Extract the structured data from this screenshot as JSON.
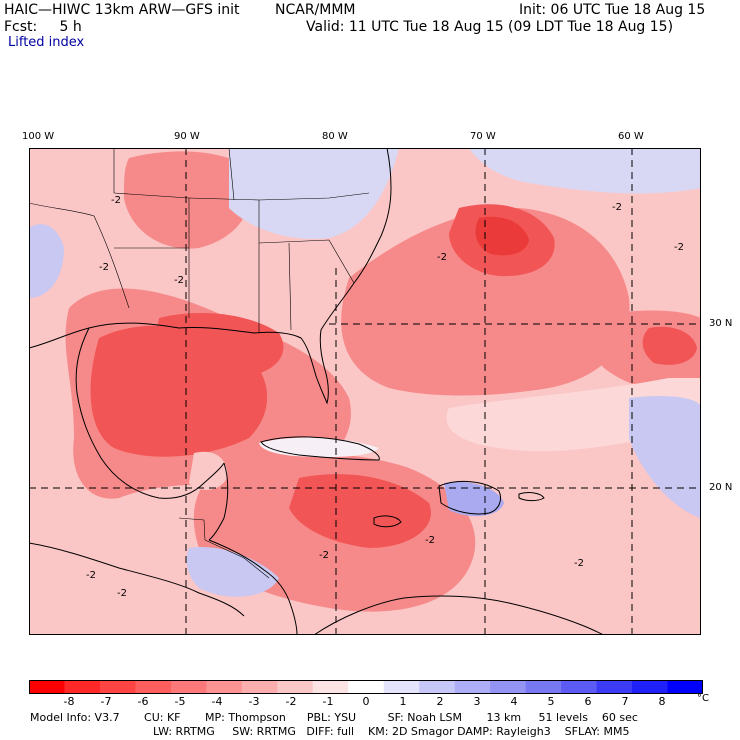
{
  "header": {
    "model": "HAIC—HIWC 13km ARW—GFS init",
    "org": "NCAR/MMM",
    "init": "Init: 06 UTC Tue 18 Aug 15",
    "fcst": "Fcst:     5 h",
    "valid": "Valid: 11 UTC Tue 18 Aug 15 (09 LDT Tue 18 Aug 15)",
    "field": "Lifted index"
  },
  "map": {
    "lon_labels": [
      "100 W",
      "90 W",
      "80 W",
      "70 W",
      "60 W"
    ],
    "lat_labels": [
      "30 N",
      "20 N"
    ],
    "contour_label": "-2",
    "colors": {
      "strong_negative": "#f05050",
      "moderate_negative": "#f68a8a",
      "weak_negative": "#fbcaca",
      "weak_positive": "#d8d8f4",
      "positive": "#aaaaf0"
    }
  },
  "colorbar": {
    "ticks": [
      "-8",
      "-7",
      "-6",
      "-5",
      "-4",
      "-3",
      "-2",
      "-1",
      "0",
      "1",
      "2",
      "3",
      "4",
      "5",
      "6",
      "7",
      "8"
    ],
    "unit": "°C",
    "colors": [
      "#ff0000",
      "#ff2828",
      "#ff4444",
      "#fe5e5e",
      "#fd7878",
      "#fc9494",
      "#fbaeae",
      "#fbc8c8",
      "#fde4e4",
      "#ffffff",
      "#e4e4fc",
      "#c8c8f8",
      "#aeaef6",
      "#9494f4",
      "#7878f2",
      "#5c5cf4",
      "#3c3cf6",
      "#2020f8",
      "#0000ff"
    ]
  },
  "footer": {
    "line1": "Model Info: V3.7       CU: KF       MP: Thompson      PBL: YSU         SF: Noah LSM       13 km     51 levels    60 sec",
    "line2": "LW: RRTMG     SW: RRTMG   DIFF: full    KM: 2D Smagor DAMP: Rayleigh3    SFLAY: MM5"
  }
}
